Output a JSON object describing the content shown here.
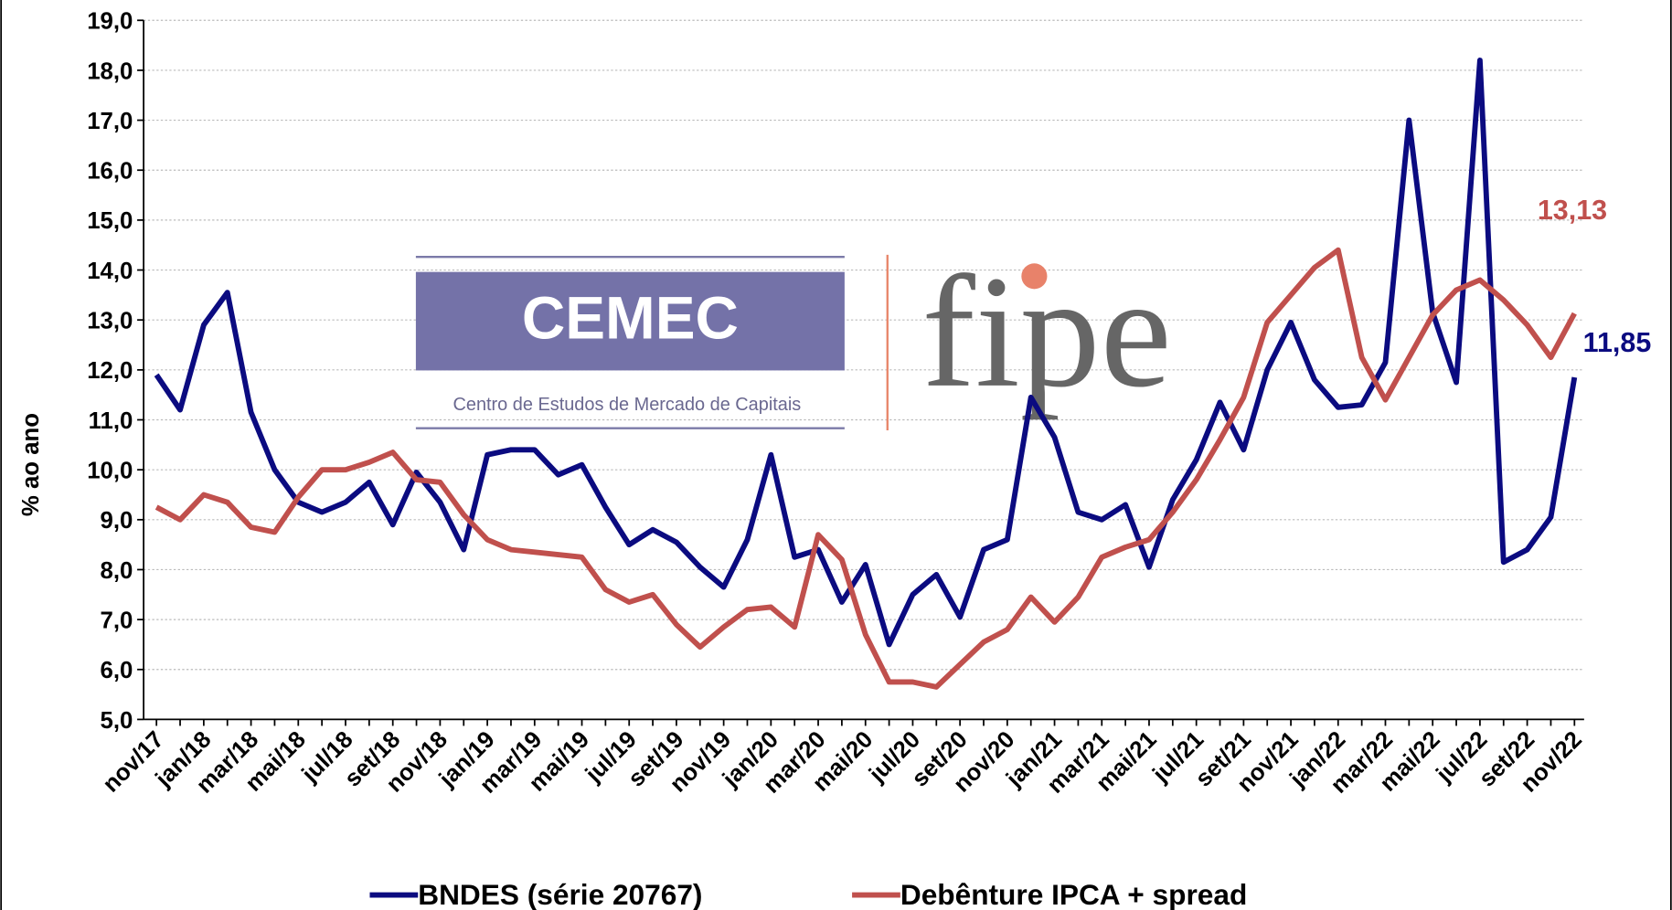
{
  "chart_data": {
    "type": "line",
    "y_label": "% ao ano",
    "categories": [
      "nov/17",
      null,
      "jan/18",
      null,
      "mar/18",
      null,
      "mai/18",
      null,
      "jul/18",
      null,
      "set/18",
      null,
      "nov/18",
      null,
      "jan/19",
      null,
      "mar/19",
      null,
      "mai/19",
      null,
      "jul/19",
      null,
      "set/19",
      null,
      "nov/19",
      null,
      "jan/20",
      null,
      "mar/20",
      null,
      "mai/20",
      null,
      "jul/20",
      null,
      "set/20",
      null,
      "nov/20",
      null,
      "jan/21",
      null,
      "mar/21",
      null,
      "mai/21",
      null,
      "jul/21",
      null,
      "set/21",
      null,
      "nov/21",
      null,
      "jan/22",
      null,
      "mar/22",
      null,
      "mai/22",
      null,
      "jul/22",
      null,
      "set/22",
      null,
      "nov/22"
    ],
    "series": [
      {
        "name": "BNDES (série 20767)",
        "color": "#0b0b80",
        "values": [
          11.9,
          11.2,
          12.9,
          13.55,
          11.15,
          10.0,
          9.35,
          9.15,
          9.35,
          9.75,
          8.9,
          9.95,
          9.35,
          8.4,
          10.3,
          10.4,
          10.4,
          9.9,
          10.1,
          9.25,
          8.5,
          8.8,
          8.55,
          8.05,
          7.65,
          8.6,
          10.3,
          8.25,
          8.4,
          7.35,
          8.1,
          6.5,
          7.5,
          7.9,
          7.05,
          8.4,
          8.6,
          11.45,
          10.65,
          9.15,
          9.0,
          9.3,
          8.05,
          9.4,
          10.2,
          11.35,
          10.4,
          12.0,
          12.95,
          11.8,
          11.25,
          11.3,
          12.15,
          17.0,
          13.15,
          11.75,
          18.2,
          8.15,
          8.4,
          9.05,
          11.85
        ],
        "value_labels": [
          null,
          null,
          null,
          null,
          null,
          null,
          null,
          null,
          null,
          null,
          null,
          null,
          null,
          null,
          null,
          null,
          null,
          null,
          null,
          null,
          null,
          null,
          null,
          null,
          null,
          null,
          null,
          null,
          null,
          null,
          null,
          null,
          null,
          null,
          null,
          null,
          null,
          null,
          null,
          null,
          null,
          null,
          null,
          null,
          null,
          null,
          null,
          null,
          null,
          null,
          null,
          null,
          null,
          null,
          null,
          null,
          null,
          null,
          null,
          null,
          "11,85"
        ]
      },
      {
        "name": "Debênture IPCA + spread",
        "color": "#c0504d",
        "values": [
          9.25,
          9.0,
          9.5,
          9.35,
          8.85,
          8.75,
          9.45,
          10.0,
          10.0,
          10.15,
          10.35,
          9.8,
          9.75,
          9.1,
          8.6,
          8.4,
          8.35,
          8.3,
          8.25,
          7.6,
          7.35,
          7.5,
          6.9,
          6.45,
          6.85,
          7.2,
          7.25,
          6.85,
          8.7,
          8.2,
          6.7,
          5.75,
          5.75,
          5.65,
          6.1,
          6.55,
          6.8,
          7.45,
          6.95,
          7.45,
          8.25,
          8.45,
          8.6,
          9.15,
          9.8,
          10.6,
          11.45,
          12.95,
          13.5,
          14.05,
          14.4,
          12.25,
          11.4,
          12.25,
          13.1,
          13.6,
          13.8,
          13.4,
          12.9,
          12.25,
          13.13
        ],
        "value_labels": [
          null,
          null,
          null,
          null,
          null,
          null,
          null,
          null,
          null,
          null,
          null,
          null,
          null,
          null,
          null,
          null,
          null,
          null,
          null,
          null,
          null,
          null,
          null,
          null,
          null,
          null,
          null,
          null,
          null,
          null,
          null,
          null,
          null,
          null,
          null,
          null,
          null,
          null,
          null,
          null,
          null,
          null,
          null,
          null,
          null,
          null,
          null,
          null,
          null,
          null,
          null,
          null,
          null,
          null,
          null,
          null,
          null,
          null,
          null,
          null,
          "13,13"
        ]
      }
    ],
    "ylim": [
      5,
      19
    ],
    "yticks": [
      {
        "value": 5,
        "label": "5,0"
      },
      {
        "value": 6,
        "label": "6,0"
      },
      {
        "value": 7,
        "label": "7,0"
      },
      {
        "value": 8,
        "label": "8,0"
      },
      {
        "value": 9,
        "label": "9,0"
      },
      {
        "value": 10,
        "label": "10,0"
      },
      {
        "value": 11,
        "label": "11,0"
      },
      {
        "value": 12,
        "label": "12,0"
      },
      {
        "value": 13,
        "label": "13,0"
      },
      {
        "value": 14,
        "label": "14,0"
      },
      {
        "value": 15,
        "label": "15,0"
      },
      {
        "value": 16,
        "label": "16,0"
      },
      {
        "value": 17,
        "label": "17,0"
      },
      {
        "value": 18,
        "label": "18,0"
      },
      {
        "value": 19,
        "label": "19,0"
      }
    ],
    "grid": true,
    "legend": "bottom"
  },
  "logo": {
    "left_title": "CEMEC",
    "left_subtitle": "Centro de Estudos de Mercado de Capitais",
    "right": "fipe"
  }
}
